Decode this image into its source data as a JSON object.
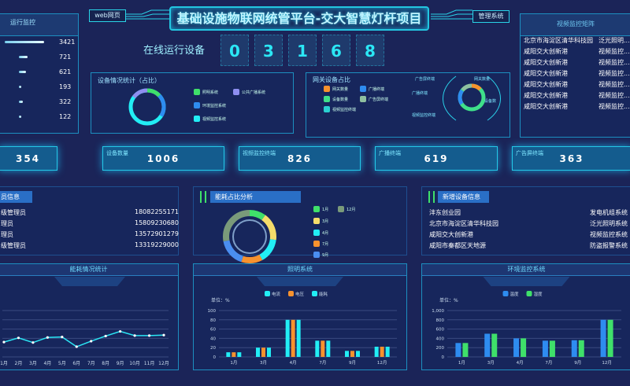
{
  "header": {
    "title": "基础设施物联网统管平台-交大智慧灯杆项目",
    "left_button": "web网页",
    "right_button": "管理系统"
  },
  "run_monitor": {
    "title": "运行监控",
    "items": [
      {
        "value": "3421",
        "level": 1.0
      },
      {
        "value": "721",
        "level": 0.21
      },
      {
        "value": "621",
        "level": 0.18
      },
      {
        "value": "193",
        "level": 0.06
      },
      {
        "value": "322",
        "level": 0.09
      },
      {
        "value": "122",
        "level": 0.04
      }
    ]
  },
  "online": {
    "label": "在线运行设备",
    "digits": [
      "0",
      "3",
      "1",
      "6",
      "8"
    ]
  },
  "device_stats": {
    "title": "设备情况统计（占比）",
    "legend": [
      {
        "label": "照明系统",
        "color": "#3fe06a"
      },
      {
        "label": "公共广播系统",
        "color": "#8e8ef0"
      },
      {
        "label": "环境监控系统",
        "color": "#2e8cf0"
      },
      {
        "label": "视频监控系统",
        "color": "#22eef5"
      }
    ]
  },
  "gateway": {
    "title": "网关设备占比",
    "legend": [
      {
        "label": "网关数量",
        "color": "#f7922e"
      },
      {
        "label": "广播终端",
        "color": "#2e8cf0"
      },
      {
        "label": "设备数量",
        "color": "#3fe08a"
      },
      {
        "label": "广告屏终端",
        "color": "#8fc0a0"
      },
      {
        "label": "视频监控终端",
        "color": "#2ad0d0"
      }
    ],
    "callouts": [
      "广告屏终端",
      "网关数量",
      "广播终端",
      "设备数",
      "视频监控终端"
    ]
  },
  "video_matrix": {
    "title": "视频监控矩阵",
    "rows": [
      [
        "北京市海淀区清华科技园",
        "泛光照明..."
      ],
      [
        "咸阳交大创新港",
        "视频监控..."
      ],
      [
        "咸阳交大创新港",
        "视频监控..."
      ],
      [
        "咸阳交大创新港",
        "视频监控..."
      ],
      [
        "咸阳交大创新港",
        "视频监控..."
      ],
      [
        "咸阳交大创新港",
        "视频监控..."
      ],
      [
        "咸阳交大创新港",
        "视频监控..."
      ]
    ]
  },
  "cards": [
    {
      "label": "",
      "value": "354"
    },
    {
      "label": "设备数量",
      "value": "1006"
    },
    {
      "label": "视频监控终端",
      "value": "826"
    },
    {
      "label": "广播终端",
      "value": "619"
    },
    {
      "label": "广告屏终端",
      "value": "363"
    }
  ],
  "personnel": {
    "title": "员信息",
    "rows": [
      [
        "级管理员",
        "18082255171"
      ],
      [
        "理员",
        "15809230680"
      ],
      [
        "理员",
        "13572901279"
      ],
      [
        "级管理员",
        "13319229000"
      ]
    ]
  },
  "energy_share": {
    "title": "能耗占比分析",
    "legend": [
      {
        "label": "1月",
        "color": "#3fe06a"
      },
      {
        "label": "12月",
        "color": "#7a9a7a"
      },
      {
        "label": "3月",
        "color": "#f5dc6a"
      },
      {
        "label": "4月",
        "color": "#22eef5"
      },
      {
        "label": "7月",
        "color": "#f7922e"
      },
      {
        "label": "9月",
        "color": "#4a8ef0"
      }
    ]
  },
  "new_devices": {
    "title": "新增设备信息",
    "rows": [
      [
        "沣东创业园",
        "发电机组系统"
      ],
      [
        "北京市海淀区清华科技园",
        "泛光照明系统"
      ],
      [
        "咸阳交大创新港",
        "视频监控系统"
      ],
      [
        "咸阳市秦都区天地源",
        "防盗报警系统"
      ]
    ]
  },
  "chart_data": [
    {
      "type": "line",
      "title": "能耗情况统计",
      "categories": [
        "1月",
        "2月",
        "3月",
        "4月",
        "5月",
        "6月",
        "7月",
        "8月",
        "9月",
        "10月",
        "11月",
        "12月"
      ],
      "values": [
        32,
        41,
        31,
        42,
        43,
        22,
        34,
        45,
        55,
        46,
        46,
        47
      ],
      "ylim": [
        0,
        100
      ],
      "grid": true,
      "color": "#2be7f5"
    },
    {
      "type": "bar",
      "title": "照明系统",
      "unit": "单位：%",
      "categories": [
        "1月",
        "3月",
        "4月",
        "7月",
        "9月",
        "12月"
      ],
      "yticks": [
        "0",
        "20",
        "40",
        "60",
        "80",
        "100"
      ],
      "ylim": [
        0,
        100
      ],
      "legend_placement": "top",
      "series": [
        {
          "name": "电流",
          "color": "#22eef5",
          "values": [
            10,
            20,
            80,
            35,
            13,
            22
          ]
        },
        {
          "name": "电压",
          "color": "#f7922e",
          "values": [
            10,
            20,
            80,
            35,
            13,
            22
          ]
        },
        {
          "name": "能耗",
          "color": "#22eef5",
          "values": [
            10,
            20,
            80,
            35,
            13,
            22
          ]
        }
      ]
    },
    {
      "type": "bar",
      "title": "环境监控系统",
      "unit": "单位：%",
      "categories": [
        "1月",
        "3月",
        "4月",
        "7月",
        "9月",
        "12月"
      ],
      "yticks": [
        "0",
        "200",
        "400",
        "600",
        "800",
        "1,000"
      ],
      "ylim": [
        0,
        1000
      ],
      "legend_placement": "top",
      "series": [
        {
          "name": "温度",
          "color": "#2e8cf0",
          "values": [
            300,
            500,
            400,
            350,
            360,
            800
          ]
        },
        {
          "name": "湿度",
          "color": "#3fe06a",
          "values": [
            300,
            500,
            400,
            350,
            360,
            800
          ]
        }
      ]
    }
  ]
}
